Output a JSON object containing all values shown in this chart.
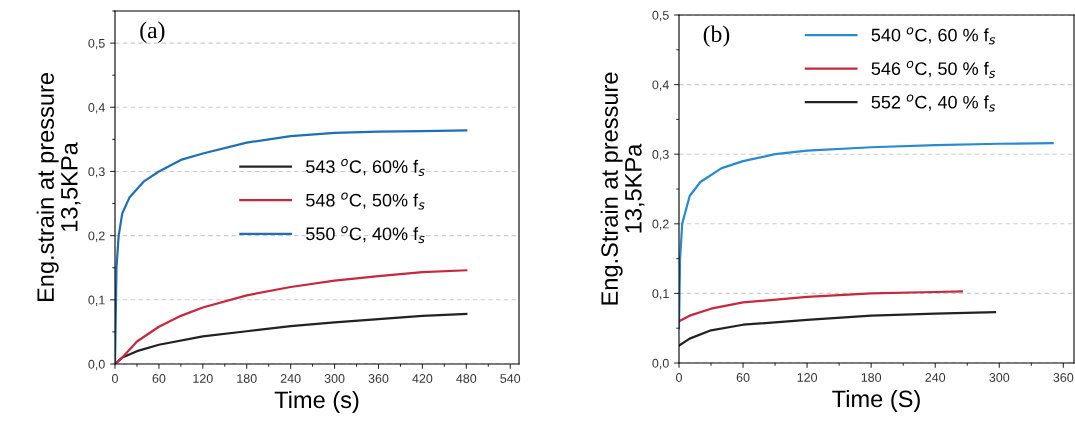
{
  "chart_data": [
    {
      "type": "line",
      "xlabel": "Time (s)",
      "ylabel": "Eng.strain at pressure\n13,5KPa",
      "annotations": [
        "(a)"
      ],
      "grid": "y",
      "legend": "center",
      "line_style": "solid",
      "xlim": [
        0,
        552
      ],
      "ylim": [
        0,
        0.55
      ],
      "xticks": [
        0,
        60,
        120,
        180,
        240,
        300,
        360,
        420,
        480,
        540
      ],
      "yticks": [
        {
          "value": 0,
          "label": "0,0"
        },
        {
          "value": 0.1,
          "label": "0,1"
        },
        {
          "value": 0.2,
          "label": "0,2"
        },
        {
          "value": 0.3,
          "label": "0,3"
        },
        {
          "value": 0.4,
          "label": "0,4"
        },
        {
          "value": 0.5,
          "label": "0,5"
        }
      ],
      "series": [
        {
          "name": "543 $^{o}$C, 60% f$_{s}$",
          "color": "#222222",
          "x": [
            0,
            10,
            30,
            60,
            120,
            180,
            240,
            300,
            360,
            420,
            480
          ],
          "values": [
            0,
            0.01,
            0.02,
            0.03,
            0.043,
            0.051,
            0.059,
            0.065,
            0.07,
            0.075,
            0.078
          ]
        },
        {
          "name": "548 $^{o}$C, 50% f$_{s}$",
          "color": "#c8283c",
          "x": [
            0,
            10,
            30,
            60,
            90,
            120,
            180,
            240,
            300,
            360,
            420,
            480
          ],
          "values": [
            0,
            0.01,
            0.035,
            0.058,
            0.075,
            0.088,
            0.107,
            0.12,
            0.13,
            0.137,
            0.143,
            0.146
          ]
        },
        {
          "name": "550 $^{o}$C, 40% f$_{s}$",
          "color": "#1f6fb8",
          "x": [
            0,
            2,
            5,
            10,
            20,
            40,
            60,
            90,
            120,
            180,
            240,
            300,
            360,
            420,
            480
          ],
          "values": [
            0,
            0.15,
            0.2,
            0.235,
            0.26,
            0.285,
            0.3,
            0.318,
            0.328,
            0.345,
            0.355,
            0.36,
            0.362,
            0.363,
            0.364
          ]
        }
      ]
    },
    {
      "type": "line",
      "xlabel": "Time (S)",
      "ylabel": "Eng.Strain at pressure\n13,5KPa",
      "annotations": [
        "(b)"
      ],
      "grid": "y",
      "legend": "top",
      "line_style": "solid",
      "xlim": [
        0,
        370
      ],
      "ylim": [
        0,
        0.5
      ],
      "xticks": [
        0,
        60,
        120,
        180,
        240,
        300,
        360
      ],
      "yticks": [
        {
          "value": 0,
          "label": "0,0"
        },
        {
          "value": 0.1,
          "label": "0,1"
        },
        {
          "value": 0.2,
          "label": "0,2"
        },
        {
          "value": 0.3,
          "label": "0,3"
        },
        {
          "value": 0.4,
          "label": "0,4"
        },
        {
          "value": 0.5,
          "label": "0,5"
        }
      ],
      "series": [
        {
          "name": "540 $^{o}$C, 60 % f$_{s}$",
          "color": "#2a8ad0",
          "x": [
            0,
            1,
            3,
            10,
            20,
            40,
            60,
            90,
            120,
            180,
            240,
            300,
            350
          ],
          "values": [
            0.05,
            0.15,
            0.2,
            0.24,
            0.26,
            0.28,
            0.29,
            0.3,
            0.305,
            0.31,
            0.313,
            0.315,
            0.316
          ]
        },
        {
          "name": "546 $^{o}$C, 50 % f$_{s}$",
          "color": "#c8283c",
          "x": [
            0,
            10,
            30,
            60,
            120,
            180,
            240,
            265
          ],
          "values": [
            0.06,
            0.068,
            0.078,
            0.087,
            0.095,
            0.1,
            0.102,
            0.103
          ]
        },
        {
          "name": "552 $^{o}$C, 40 % f$_{s}$",
          "color": "#222222",
          "x": [
            0,
            10,
            30,
            60,
            120,
            180,
            240,
            296
          ],
          "values": [
            0.025,
            0.035,
            0.047,
            0.055,
            0.062,
            0.068,
            0.071,
            0.073
          ]
        }
      ]
    }
  ]
}
